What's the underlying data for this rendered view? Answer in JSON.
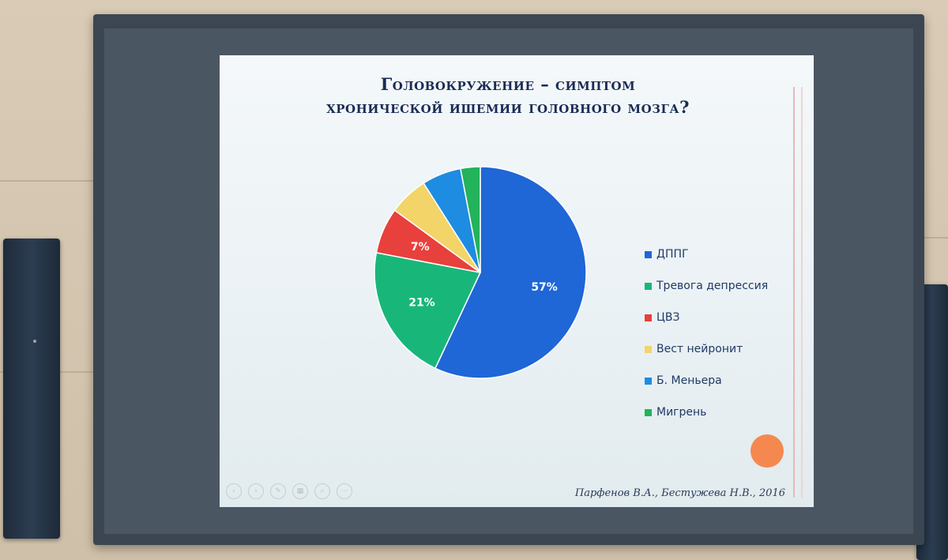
{
  "slide": {
    "title_line1": "Головокружение – симптом",
    "title_line2": "хронической ишемии головного мозга?",
    "citation": "Парфенов В.А., Бестужева Н.В., 2016"
  },
  "nav_icons": [
    "arrow-left-icon",
    "arrow-right-icon",
    "pen-icon",
    "slides-icon",
    "zoom-icon",
    "more-icon"
  ],
  "colors": {
    "orange_dot": "#f5884f"
  },
  "chart_data": {
    "type": "pie",
    "title": "",
    "start": "12 o'clock, clockwise",
    "slices": [
      {
        "label": "ДППГ",
        "value": 57,
        "data_label": "57%",
        "color": "#1f66d6"
      },
      {
        "label": "Тревога депрессия",
        "value": 21,
        "data_label": "21%",
        "color": "#19b67a"
      },
      {
        "label": "ЦВЗ",
        "value": 7,
        "data_label": "7%",
        "color": "#e8403c"
      },
      {
        "label": "Вест нейронит",
        "value": 6,
        "data_label": "",
        "color": "#f2d468"
      },
      {
        "label": "Б. Меньера",
        "value": 6,
        "data_label": "",
        "color": "#1e8ce0"
      },
      {
        "label": "Мигрень",
        "value": 3,
        "data_label": "",
        "color": "#22b35b"
      }
    ],
    "legend_position": "right"
  }
}
